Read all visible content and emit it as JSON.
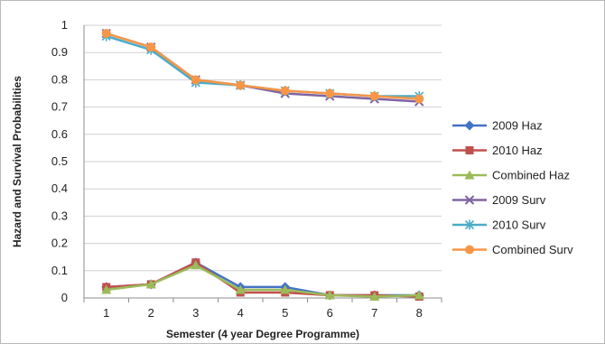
{
  "chart_data": {
    "type": "line",
    "title": "",
    "xlabel": "Semester (4 year Degree Programme)",
    "ylabel": "Hazard and Survival Probabilities",
    "categories": [
      "1",
      "2",
      "3",
      "4",
      "5",
      "6",
      "7",
      "8"
    ],
    "ylim": [
      0,
      1
    ],
    "yticks": [
      "0",
      "0.1",
      "0.2",
      "0.3",
      "0.4",
      "0.5",
      "0.6",
      "0.7",
      "0.8",
      "0.9",
      "1"
    ],
    "grid": true,
    "legend_position": "right",
    "series": [
      {
        "name": "2009 Haz",
        "color": "#4472c4",
        "marker": "diamond",
        "values": [
          0.04,
          0.05,
          0.13,
          0.04,
          0.04,
          0.01,
          0.01,
          0.01
        ]
      },
      {
        "name": "2010 Haz",
        "color": "#c0504d",
        "marker": "square",
        "values": [
          0.04,
          0.05,
          0.13,
          0.02,
          0.02,
          0.01,
          0.01,
          0.005
        ]
      },
      {
        "name": "Combined Haz",
        "color": "#9bbb59",
        "marker": "triangle",
        "values": [
          0.03,
          0.05,
          0.12,
          0.03,
          0.03,
          0.01,
          0.005,
          0.01
        ]
      },
      {
        "name": "2009 Surv",
        "color": "#8064a2",
        "marker": "x",
        "values": [
          0.97,
          0.92,
          0.8,
          0.78,
          0.75,
          0.74,
          0.73,
          0.72
        ]
      },
      {
        "name": "2010 Surv",
        "color": "#4bacc6",
        "marker": "star",
        "values": [
          0.96,
          0.91,
          0.79,
          0.78,
          0.76,
          0.75,
          0.74,
          0.74
        ]
      },
      {
        "name": "Combined Surv",
        "color": "#f79646",
        "marker": "circle",
        "values": [
          0.97,
          0.92,
          0.8,
          0.78,
          0.76,
          0.75,
          0.74,
          0.73
        ]
      }
    ]
  }
}
